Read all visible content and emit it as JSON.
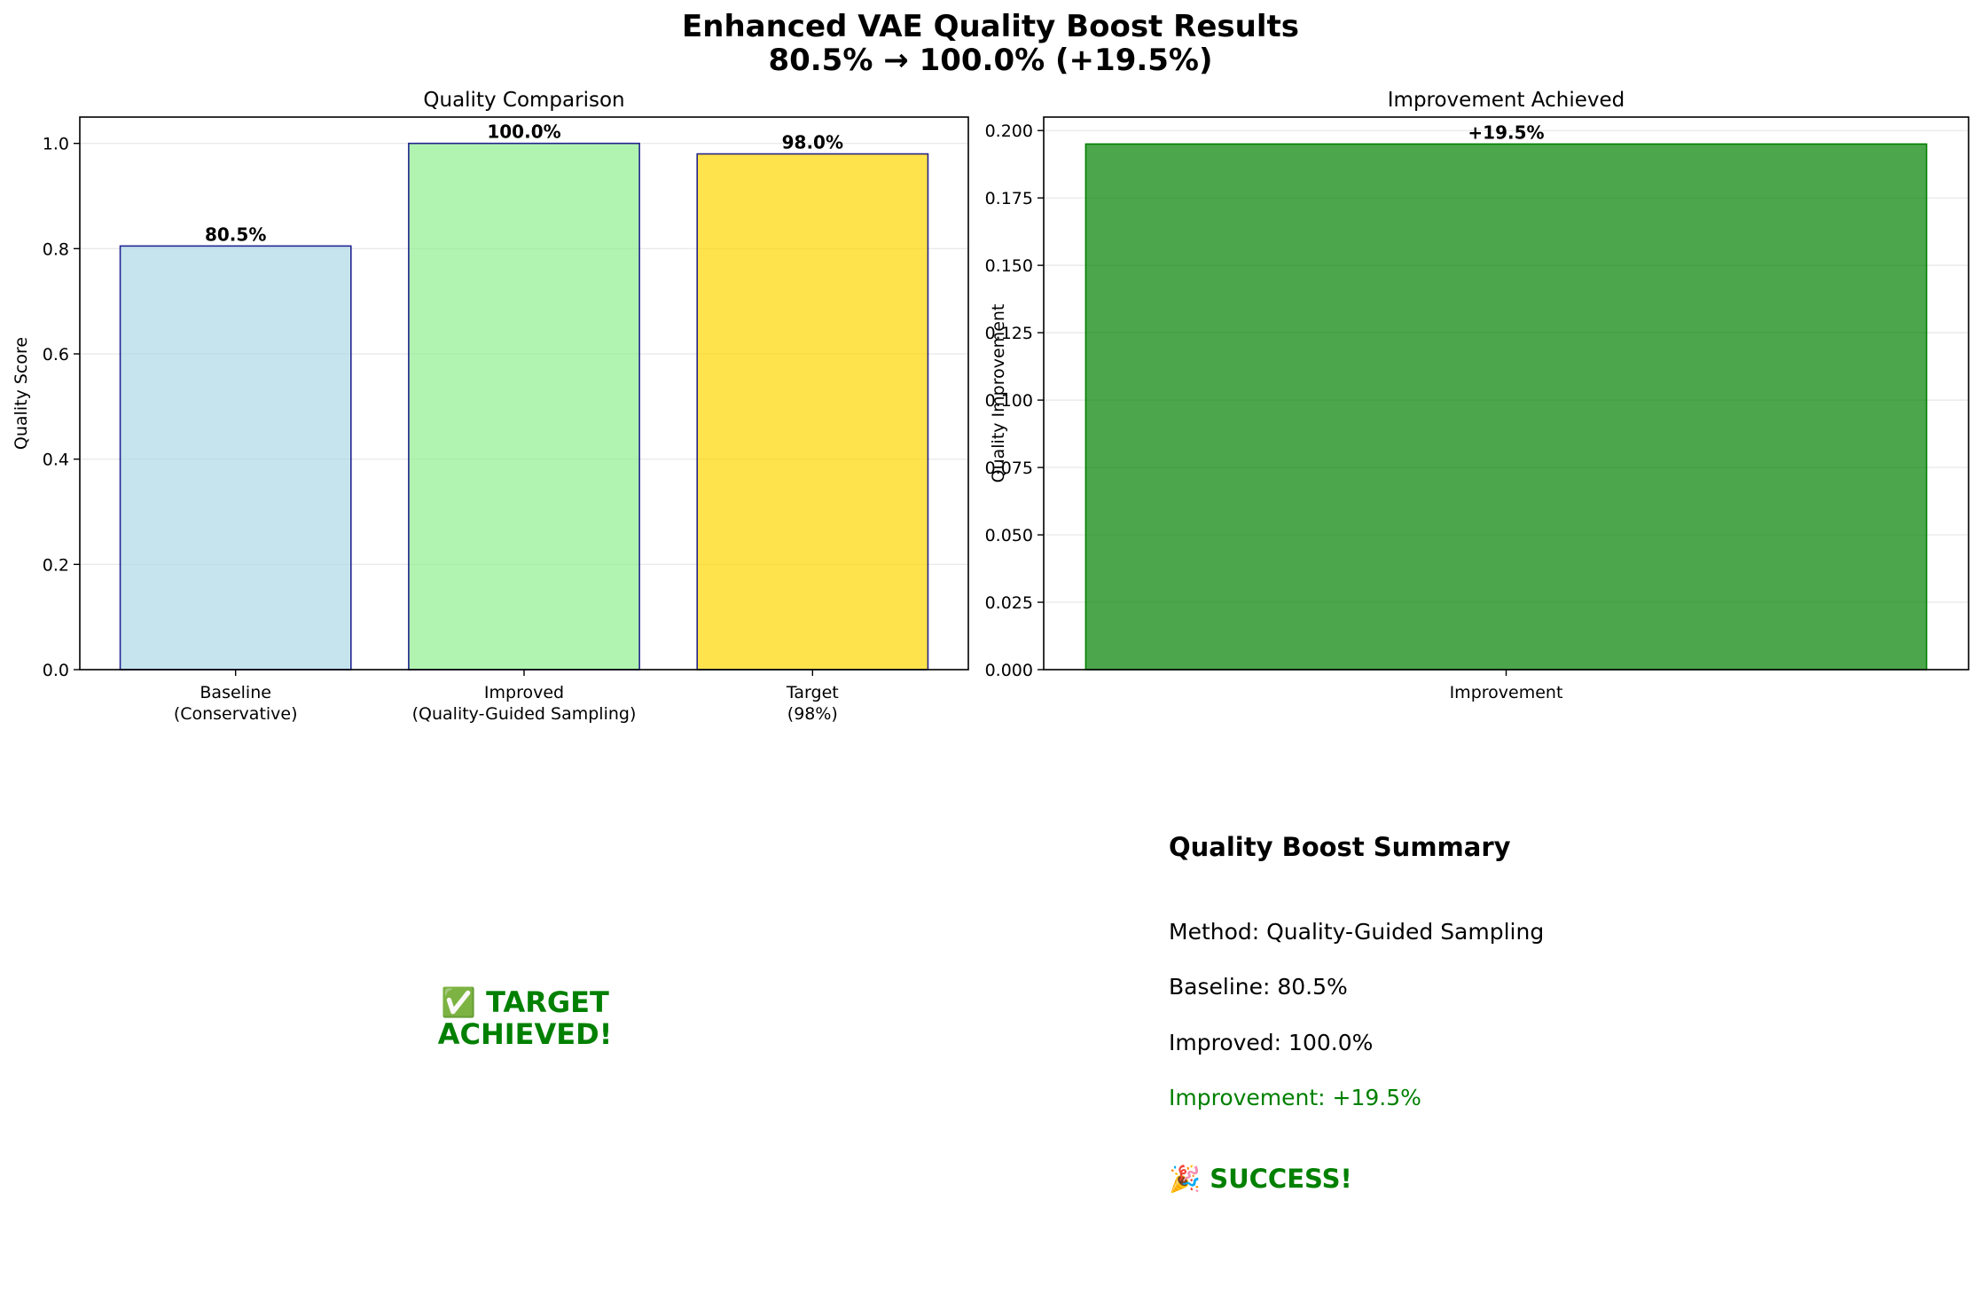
{
  "figure": {
    "title_line1": "Enhanced VAE Quality Boost Results",
    "title_line2": "80.5% → 100.0% (+19.5%)"
  },
  "chart_data": [
    {
      "type": "bar",
      "title": "Quality Comparison",
      "xlabel": "",
      "ylabel": "Quality Score",
      "categories": [
        [
          "Baseline",
          "(Conservative)"
        ],
        [
          "Improved",
          "(Quality-Guided Sampling)"
        ],
        [
          "Target",
          "(98%)"
        ]
      ],
      "values": [
        0.805,
        1.0,
        0.98
      ],
      "data_labels": [
        "80.5%",
        "100.0%",
        "98.0%"
      ],
      "colors": [
        "#add8e6",
        "#90ee90",
        "#ffd700"
      ],
      "ylim": [
        0,
        1.05
      ],
      "yticks": [
        "0.0",
        "0.2",
        "0.4",
        "0.6",
        "0.8",
        "1.0"
      ],
      "grid": true
    },
    {
      "type": "bar",
      "title": "Improvement Achieved",
      "xlabel": "",
      "ylabel": "Quality Improvement",
      "categories": [
        [
          "Improvement"
        ]
      ],
      "values": [
        0.195
      ],
      "data_labels": [
        "+19.5%"
      ],
      "colors": [
        "#008000"
      ],
      "ylim": [
        0,
        0.205
      ],
      "yticks": [
        "0.000",
        "0.025",
        "0.050",
        "0.075",
        "0.100",
        "0.125",
        "0.150",
        "0.175",
        "0.200"
      ],
      "grid": true
    }
  ],
  "status_panel": {
    "line1": "✅ TARGET",
    "line2": "ACHIEVED!"
  },
  "summary": {
    "title": "Quality Boost Summary",
    "method": "Method: Quality-Guided Sampling",
    "baseline": "Baseline: 80.5%",
    "improved": "Improved: 100.0%",
    "improvement": "Improvement: +19.5%",
    "success": "🎉 SUCCESS!"
  },
  "colors": {
    "accent_green": "#008000",
    "bar_edge": "#000080",
    "grid": "#e6e6e6"
  }
}
